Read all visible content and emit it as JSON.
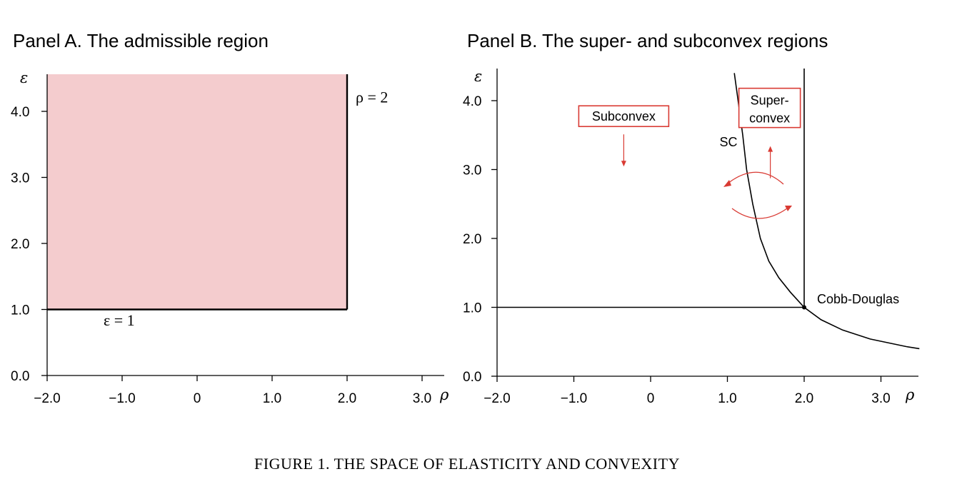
{
  "figure": {
    "caption": "FIGURE 1. THE SPACE OF ELASTICITY AND CONVEXITY"
  },
  "colors": {
    "admissible_fill": "#f4ccce",
    "annotation_red": "#d93a33",
    "axis": "#000000"
  },
  "chart_data": [
    {
      "type": "area",
      "title": "Panel A. The admissible region",
      "xlabel": "ρ",
      "ylabel": "ε",
      "xlim": [
        -2.0,
        3.3
      ],
      "ylim": [
        0.0,
        4.4
      ],
      "x_ticks": [
        -2.0,
        -1.0,
        0,
        1.0,
        2.0,
        3.0
      ],
      "x_tick_labels": [
        "−2.0",
        "−1.0",
        "0",
        "1.0",
        "2.0",
        "3.0"
      ],
      "y_ticks": [
        0.0,
        1.0,
        2.0,
        3.0,
        4.0
      ],
      "y_tick_labels": [
        "0.0",
        "1.0",
        "2.0",
        "3.0",
        "4.0"
      ],
      "grid": false,
      "regions": [
        {
          "name": "admissible region",
          "x": [
            -2.0,
            2.0
          ],
          "y": [
            1.0,
            4.4
          ]
        }
      ],
      "lines": [
        {
          "label": "ε = 1",
          "x": [
            -2.0,
            2.0
          ],
          "y": [
            1.0,
            1.0
          ]
        },
        {
          "label": "ρ = 2",
          "x": [
            2.0,
            2.0
          ],
          "y": [
            1.0,
            4.4
          ]
        }
      ],
      "annotations": [
        {
          "text": "ε = 1",
          "x": -1.0,
          "y": 0.8
        },
        {
          "text": "ρ = 2",
          "x": 2.4,
          "y": 4.2
        }
      ]
    },
    {
      "type": "line",
      "title": "Panel B. The super- and subconvex regions",
      "xlabel": "ρ",
      "ylabel": "ε",
      "xlim": [
        -2.0,
        3.5
      ],
      "ylim": [
        0.0,
        4.5
      ],
      "x_ticks": [
        -2.0,
        -1.0,
        0,
        1.0,
        2.0,
        3.0
      ],
      "x_tick_labels": [
        "−2.0",
        "−1.0",
        "0",
        "1.0",
        "2.0",
        "3.0"
      ],
      "y_ticks": [
        0.0,
        1.0,
        2.0,
        3.0,
        4.0
      ],
      "y_tick_labels": [
        "0.0",
        "1.0",
        "2.0",
        "3.0",
        "4.0"
      ],
      "grid": false,
      "series": [
        {
          "name": "SC",
          "x": [
            1.09,
            1.14,
            1.2,
            1.25,
            1.33,
            1.43,
            1.54,
            1.67,
            1.82,
            2.0,
            2.22,
            2.5,
            2.86,
            3.33,
            3.5
          ],
          "y": [
            4.4,
            4.0,
            3.5,
            3.0,
            2.5,
            2.0,
            1.67,
            1.43,
            1.22,
            1.0,
            0.82,
            0.67,
            0.54,
            0.43,
            0.4
          ]
        },
        {
          "name": "",
          "x": [
            -2.0,
            2.0
          ],
          "y": [
            1.0,
            1.0
          ]
        },
        {
          "name": "",
          "x": [
            2.0,
            2.0
          ],
          "y": [
            1.0,
            4.5
          ]
        }
      ],
      "points": [
        {
          "label": "Cobb-Douglas",
          "x": 2.0,
          "y": 1.0
        }
      ],
      "boxes": [
        {
          "lines": [
            "Subconvex"
          ],
          "x": -0.35,
          "y": 3.78
        },
        {
          "lines": [
            "Super-",
            "convex"
          ],
          "x": 1.55,
          "y": 3.9
        }
      ],
      "labels": {
        "sc": "SC",
        "cobb_douglas": "Cobb-Douglas"
      }
    }
  ]
}
